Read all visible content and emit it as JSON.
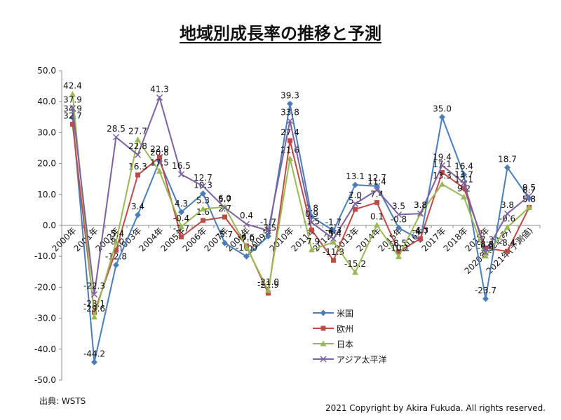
{
  "title": "地域別成長率の推移と予測",
  "source": "出典: WSTS",
  "copyright": "2021 Copyright by Akira Fukuda. All rights reserved.",
  "chart_data": {
    "type": "line",
    "title": "地域別成長率の推移と予測",
    "xlabel": "",
    "ylabel": "",
    "ylim": [
      -50,
      50
    ],
    "yticks": [
      "50.0",
      "40.0",
      "30.0",
      "20.0",
      "10.0",
      "0.0",
      "-10.0",
      "-20.0",
      "-30.0",
      "-40.0",
      "-50.0"
    ],
    "grid": false,
    "legend_position": "bottom-center",
    "categories": [
      "2000年",
      "2001年",
      "2002年",
      "2003年",
      "2004年",
      "2005年",
      "2006年",
      "2007年",
      "2008年",
      "2009年",
      "2010年",
      "2011年",
      "2012年",
      "2013年",
      "2014年",
      "2015年",
      "2016年",
      "2017年",
      "2018年",
      "2019年",
      "2020年(見込み)",
      "2021年(予測値)"
    ],
    "series": [
      {
        "name": "米国",
        "color": "#4a7ebb",
        "marker": "diamond",
        "values": [
          34.9,
          -44.2,
          -12.8,
          3.4,
          20.8,
          4.3,
          10.3,
          -5.7,
          -10.0,
          -3.5,
          39.3,
          2.8,
          -1.7,
          13.1,
          12.7,
          -0.8,
          -4.7,
          35.0,
          16.4,
          -23.7,
          18.7,
          8.7
        ]
      },
      {
        "name": "欧州",
        "color": "#be4b48",
        "marker": "square",
        "values": [
          32.7,
          -28.1,
          -8.0,
          16.3,
          22.0,
          -3.7,
          1.6,
          2.7,
          -6.6,
          -21.9,
          27.4,
          -1.5,
          -11.3,
          5.2,
          7.4,
          -8.5,
          -4.3,
          17.1,
          12.1,
          -7.3,
          -8.4,
          5.8
        ]
      },
      {
        "name": "日本",
        "color": "#98b954",
        "marker": "triangle",
        "values": [
          42.4,
          -29.6,
          -5.4,
          27.7,
          17.5,
          -0.4,
          5.3,
          6.0,
          -7.0,
          -21.0,
          21.6,
          -7.9,
          -5.4,
          -15.2,
          0.1,
          -10.1,
          3.8,
          13.3,
          9.2,
          -9.9,
          -0.6,
          5.8
        ]
      },
      {
        "name": "アジア太平洋",
        "color": "#7d60a0",
        "marker": "x",
        "values": [
          37.9,
          -22.3,
          28.5,
          22.8,
          41.3,
          16.5,
          12.7,
          5.7,
          0.4,
          -1.7,
          33.8,
          0.9,
          -4.3,
          7.0,
          11.4,
          3.5,
          3.8,
          19.4,
          13.7,
          -8.8,
          3.8,
          9.5
        ]
      }
    ]
  }
}
